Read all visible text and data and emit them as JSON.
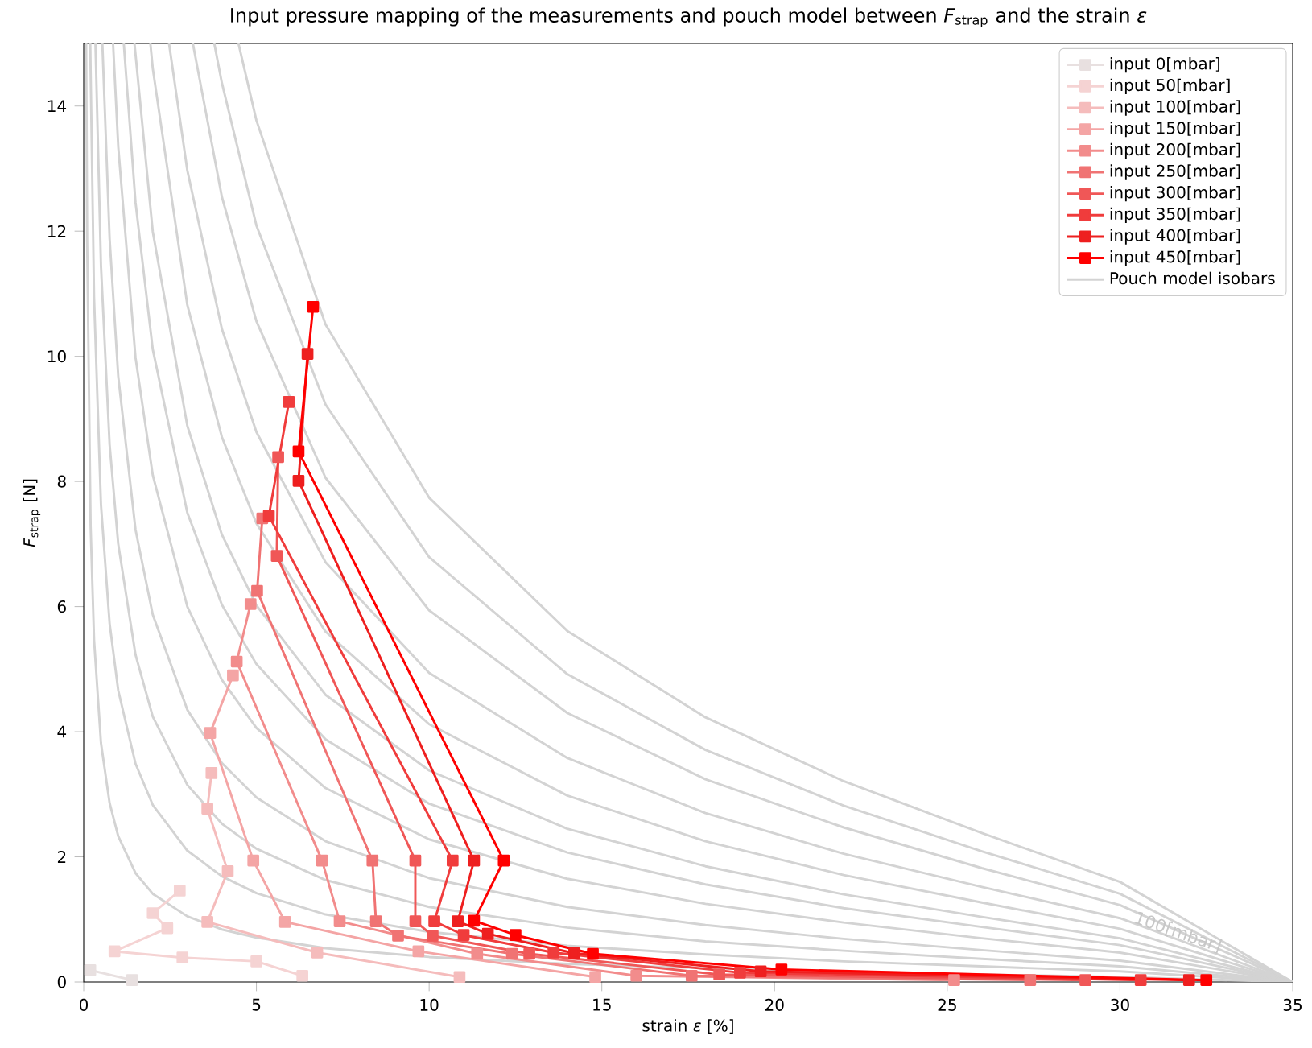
{
  "chart_data": {
    "type": "line",
    "title": "Input pressure mapping of the measurements and pouch model between *F*$_{strap}$ and the strain *ε*",
    "xlabel": "strain  *ε* [%]",
    "ylabel": "*F*$_{strap}$ [N]",
    "xlim": [
      0,
      35
    ],
    "ylim": [
      0,
      15
    ],
    "xticks": [
      0,
      5,
      10,
      15,
      20,
      25,
      30,
      35
    ],
    "yticks": [
      0,
      2,
      4,
      6,
      8,
      10,
      12,
      14
    ],
    "legend": "top right",
    "marker": "square",
    "annotations": [
      "100[mbar]"
    ],
    "series": [
      {
        "name": "Pouch model isobars",
        "color": "#d3d3d3",
        "marker": "none",
        "x": [
          0.071,
          0.1,
          0.2,
          0.3,
          0.5,
          0.75,
          1,
          1.5,
          2,
          3,
          4,
          5,
          7,
          10,
          14,
          18,
          22,
          26,
          30,
          35
        ],
        "values": [
          15,
          11.84,
          7.28,
          5.47,
          3.82,
          2.86,
          2.33,
          1.74,
          1.41,
          1.05,
          0.84,
          0.71,
          0.54,
          0.4,
          0.29,
          0.22,
          0.17,
          0.12,
          0.08,
          0
        ]
      },
      {
        "color": "#d3d3d3",
        "marker": "none",
        "x": [
          0.19,
          0.2,
          0.3,
          0.5,
          0.75,
          1,
          1.5,
          2,
          3,
          4,
          5,
          7,
          10,
          14,
          18,
          22,
          26,
          30,
          35
        ],
        "values": [
          15,
          14.56,
          10.94,
          7.63,
          5.73,
          4.66,
          3.49,
          2.83,
          2.1,
          1.69,
          1.42,
          1.08,
          0.8,
          0.58,
          0.44,
          0.33,
          0.25,
          0.17,
          0
        ]
      },
      {
        "color": "#d3d3d3",
        "marker": "none",
        "x": [
          0.34,
          0.5,
          0.75,
          1,
          1.5,
          2,
          3,
          4,
          5,
          7,
          10,
          14,
          18,
          22,
          26,
          30,
          35
        ],
        "values": [
          15,
          11.45,
          8.59,
          7.0,
          5.23,
          4.24,
          3.15,
          2.53,
          2.13,
          1.63,
          1.2,
          0.87,
          0.65,
          0.5,
          0.37,
          0.25,
          0
        ]
      },
      {
        "color": "#d3d3d3",
        "marker": "none",
        "x": [
          0.54,
          0.75,
          1,
          1.5,
          2,
          3,
          4,
          5,
          7,
          10,
          14,
          18,
          22,
          26,
          30,
          35
        ],
        "values": [
          15,
          11.88,
          9.68,
          7.23,
          5.87,
          4.35,
          3.5,
          2.95,
          2.25,
          1.66,
          1.2,
          0.91,
          0.69,
          0.51,
          0.34,
          0
        ]
      },
      {
        "color": "#d3d3d3",
        "marker": "none",
        "x": [
          0.85,
          1,
          1.5,
          2,
          3,
          4,
          5,
          7,
          10,
          14,
          18,
          22,
          26,
          30,
          35
        ],
        "values": [
          15,
          13.35,
          9.98,
          8.1,
          6.0,
          4.83,
          4.06,
          3.1,
          2.28,
          1.65,
          1.25,
          0.95,
          0.7,
          0.47,
          0
        ]
      },
      {
        "color": "#d3d3d3",
        "marker": "none",
        "x": [
          1.16,
          1.5,
          2,
          3,
          4,
          5,
          7,
          10,
          14,
          18,
          22,
          26,
          30,
          35
        ],
        "values": [
          15,
          12.46,
          10.11,
          7.5,
          6.03,
          5.08,
          3.88,
          2.85,
          2.07,
          1.56,
          1.18,
          0.88,
          0.59,
          0
        ]
      },
      {
        "color": "#d3d3d3",
        "marker": "none",
        "x": [
          1.47,
          2,
          3,
          4,
          5,
          7,
          10,
          14,
          18,
          22,
          26,
          30,
          35
        ],
        "values": [
          15,
          11.99,
          8.89,
          7.15,
          6.02,
          4.59,
          3.38,
          2.45,
          1.85,
          1.4,
          1.04,
          0.7,
          0
        ]
      },
      {
        "color": "#d3d3d3",
        "marker": "none",
        "x": [
          1.93,
          2,
          3,
          4,
          5,
          7,
          10,
          14,
          18,
          22,
          26,
          30,
          35
        ],
        "values": [
          15,
          14.6,
          10.82,
          8.71,
          7.33,
          5.6,
          4.12,
          2.98,
          2.25,
          1.71,
          1.27,
          0.85,
          0
        ]
      },
      {
        "color": "#d3d3d3",
        "marker": "none",
        "x": [
          2.47,
          3,
          4,
          5,
          7,
          10,
          14,
          18,
          22,
          26,
          30,
          35
        ],
        "values": [
          15,
          12.97,
          10.44,
          8.79,
          6.71,
          4.94,
          3.58,
          2.7,
          2.05,
          1.52,
          1.02,
          0
        ]
      },
      {
        "color": "#d3d3d3",
        "marker": "none",
        "x": [
          3.16,
          4,
          5,
          7,
          10,
          14,
          18,
          22,
          26,
          30,
          35
        ],
        "values": [
          15,
          12.55,
          10.56,
          8.06,
          5.94,
          4.3,
          3.24,
          2.47,
          1.82,
          1.23,
          0
        ]
      },
      {
        "color": "#d3d3d3",
        "marker": "none",
        "x": [
          3.78,
          4,
          5,
          7,
          10,
          14,
          18,
          22,
          26,
          30,
          35
        ],
        "values": [
          15,
          14.37,
          12.09,
          9.23,
          6.79,
          4.92,
          3.71,
          2.82,
          2.09,
          1.41,
          0
        ]
      },
      {
        "color": "#d3d3d3",
        "marker": "none",
        "x": [
          4.48,
          5,
          7,
          10,
          14,
          18,
          22,
          26,
          30,
          35
        ],
        "values": [
          15,
          13.77,
          10.51,
          7.74,
          5.61,
          4.23,
          3.21,
          2.38,
          1.6,
          0
        ]
      },
      {
        "name": "input 0[mbar]",
        "color": "#e8e0e0",
        "x": [
          0.19,
          1.4
        ],
        "values": [
          0.19,
          0.03
        ]
      },
      {
        "name": "input 50[mbar]",
        "color": "#f5d3d3",
        "x": [
          6.33,
          5.0,
          2.86,
          0.89,
          2.42,
          2.0,
          2.78
        ],
        "values": [
          0.1,
          0.33,
          0.39,
          0.49,
          0.86,
          1.1,
          1.46
        ]
      },
      {
        "name": "input 100[mbar]",
        "color": "#f5bcbc",
        "x": [
          10.88,
          6.76,
          3.58,
          4.17,
          3.58,
          3.7
        ],
        "values": [
          0.08,
          0.47,
          0.96,
          1.77,
          2.77,
          3.34
        ]
      },
      {
        "name": "input 150[mbar]",
        "color": "#f4a5a5",
        "x": [
          14.81,
          9.69,
          5.83,
          4.91,
          3.66,
          4.32
        ],
        "values": [
          0.08,
          0.49,
          0.96,
          1.94,
          3.98,
          4.9
        ]
      },
      {
        "name": "input 200[mbar]",
        "color": "#f28c8c",
        "x": [
          25.2,
          16.0,
          11.39,
          7.41,
          6.9,
          4.43,
          4.83
        ],
        "values": [
          0.03,
          0.1,
          0.45,
          0.97,
          1.94,
          5.12,
          6.04
        ]
      },
      {
        "name": "input 250[mbar]",
        "color": "#f07373",
        "x": [
          27.4,
          17.6,
          12.4,
          9.1,
          8.46,
          8.36,
          5.02,
          5.17
        ],
        "values": [
          0.03,
          0.1,
          0.45,
          0.74,
          0.97,
          1.94,
          6.25,
          7.41
        ]
      },
      {
        "name": "input 300[mbar]",
        "color": "#f05757",
        "x": [
          29.0,
          18.4,
          12.9,
          10.1,
          9.6,
          9.6,
          5.59,
          5.63
        ],
        "values": [
          0.03,
          0.12,
          0.45,
          0.74,
          0.97,
          1.94,
          6.81,
          8.39
        ]
      },
      {
        "name": "input 350[mbar]",
        "color": "#f03c3c",
        "x": [
          30.6,
          19.0,
          13.6,
          11.0,
          10.15,
          10.68,
          5.36,
          5.94
        ],
        "values": [
          0.03,
          0.15,
          0.47,
          0.75,
          0.97,
          1.94,
          7.45,
          9.27
        ]
      },
      {
        "name": "input 400[mbar]",
        "color": "#ee1f1f",
        "x": [
          32.0,
          19.6,
          14.2,
          11.7,
          10.83,
          11.3,
          6.22,
          6.48
        ],
        "values": [
          0.03,
          0.17,
          0.46,
          0.77,
          0.97,
          1.94,
          8.01,
          10.04
        ]
      },
      {
        "name": "input 450[mbar]",
        "color": "#ff0000",
        "x": [
          32.5,
          20.2,
          14.74,
          12.5,
          11.3,
          12.16,
          6.22,
          6.64
        ],
        "values": [
          0.03,
          0.2,
          0.45,
          0.75,
          0.98,
          1.94,
          8.48,
          10.79
        ]
      }
    ]
  }
}
